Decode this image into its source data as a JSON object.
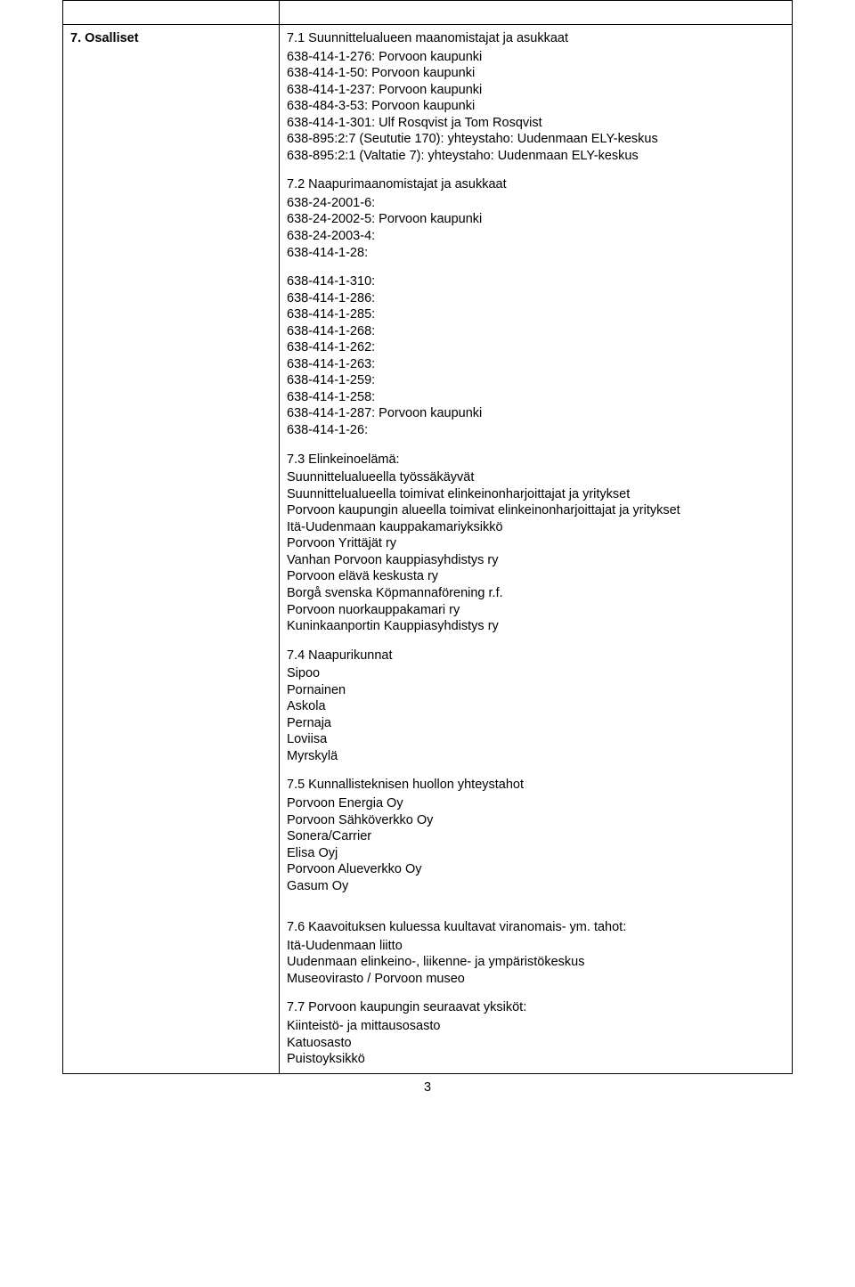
{
  "left_heading": "7. Osalliset",
  "s71": {
    "title": "7.1 Suunnittelualueen maanomistajat ja asukkaat",
    "items": [
      "638-414-1-276: Porvoon kaupunki",
      "638-414-1-50: Porvoon kaupunki",
      "638-414-1-237: Porvoon kaupunki",
      "638-484-3-53: Porvoon kaupunki",
      "638-414-1-301: Ulf Rosqvist ja Tom Rosqvist",
      "638-895:2:7 (Seututie 170): yhteystaho: Uudenmaan ELY-keskus",
      "638-895:2:1 (Valtatie 7): yhteystaho: Uudenmaan ELY-keskus"
    ]
  },
  "s72": {
    "title": "7.2 Naapurimaanomistajat ja asukkaat",
    "items_a": [
      "638-24-2001-6:",
      "638-24-2002-5: Porvoon kaupunki",
      "638-24-2003-4:",
      "638-414-1-28:"
    ],
    "items_b": [
      "638-414-1-310:",
      "638-414-1-286:",
      "638-414-1-285:",
      "638-414-1-268:",
      "638-414-1-262:",
      "638-414-1-263:",
      "638-414-1-259:",
      "638-414-1-258:",
      "638-414-1-287: Porvoon kaupunki",
      "638-414-1-26:"
    ]
  },
  "s73": {
    "title": "7.3 Elinkeinoelämä:",
    "items": [
      "Suunnittelualueella työssäkäyvät",
      "Suunnittelualueella toimivat elinkeinonharjoittajat ja yritykset",
      "Porvoon kaupungin alueella toimivat elinkeinonharjoittajat ja yritykset",
      "Itä-Uudenmaan kauppakamariyksikkö",
      "Porvoon Yrittäjät ry",
      "Vanhan Porvoon kauppiasyhdistys ry",
      "Porvoon elävä keskusta ry",
      "Borgå svenska Köpmannaförening r.f.",
      "Porvoon nuorkauppakamari ry",
      "Kuninkaanportin Kauppiasyhdistys ry"
    ]
  },
  "s74": {
    "title": "7.4 Naapurikunnat",
    "items": [
      "Sipoo",
      "Pornainen",
      "Askola",
      "Pernaja",
      "Loviisa",
      "Myrskylä"
    ]
  },
  "s75": {
    "title": "7.5 Kunnallisteknisen huollon yhteystahot",
    "items": [
      "Porvoon Energia Oy",
      "Porvoon Sähköverkko Oy",
      "Sonera/Carrier",
      "Elisa Oyj",
      "Porvoon Alueverkko Oy",
      "Gasum Oy"
    ]
  },
  "s76": {
    "title": "7.6 Kaavoituksen kuluessa kuultavat viranomais- ym. tahot:",
    "items": [
      "Itä-Uudenmaan liitto",
      "Uudenmaan elinkeino-, liikenne- ja ympäristökeskus",
      "Museovirasto / Porvoon museo"
    ]
  },
  "s77": {
    "title": "7.7 Porvoon kaupungin seuraavat yksiköt:",
    "items": [
      "Kiinteistö- ja mittausosasto",
      "Katuosasto",
      "Puistoyksikkö"
    ]
  },
  "page_number": "3"
}
